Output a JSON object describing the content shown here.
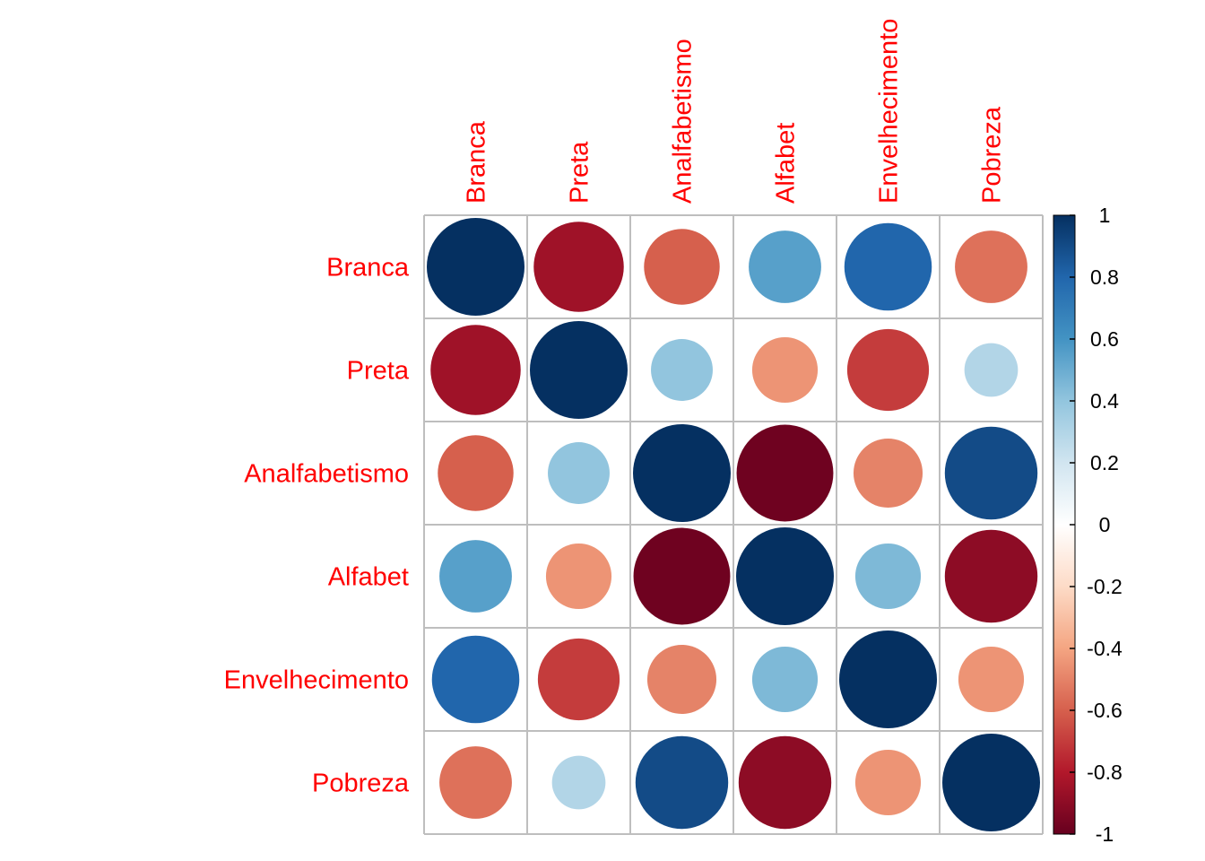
{
  "chart_data": {
    "type": "heatmap",
    "subtype": "correlation-circle-matrix",
    "variables": [
      "Branca",
      "Preta",
      "Analfabetismo",
      "Alfabet",
      "Envelhecimento",
      "Pobreza"
    ],
    "matrix": [
      [
        1.0,
        -0.85,
        -0.6,
        0.55,
        0.8,
        -0.55
      ],
      [
        -0.85,
        1.0,
        0.4,
        -0.45,
        -0.7,
        0.3
      ],
      [
        -0.6,
        0.4,
        1.0,
        -0.98,
        -0.5,
        0.9
      ],
      [
        0.55,
        -0.45,
        -0.98,
        1.0,
        0.45,
        -0.9
      ],
      [
        0.8,
        -0.7,
        -0.5,
        0.45,
        1.0,
        -0.45
      ],
      [
        -0.55,
        0.3,
        0.9,
        -0.9,
        -0.45,
        1.0
      ]
    ],
    "colorbar": {
      "range": [
        -1,
        1
      ],
      "ticks": [
        "1",
        "0.8",
        "0.6",
        "0.4",
        "0.2",
        "0",
        "-0.2",
        "-0.4",
        "-0.6",
        "-0.8",
        "-1"
      ],
      "tick_values": [
        1,
        0.8,
        0.6,
        0.4,
        0.2,
        0,
        -0.2,
        -0.4,
        -0.6,
        -0.8,
        -1
      ],
      "colors": [
        "#67001f",
        "#b2182b",
        "#d6604d",
        "#f4a582",
        "#fddbc7",
        "#ffffff",
        "#d1e5f0",
        "#92c5de",
        "#4393c3",
        "#2166ac",
        "#053061"
      ]
    },
    "label_color": "#ff0000",
    "grid_color": "#bebebe"
  }
}
